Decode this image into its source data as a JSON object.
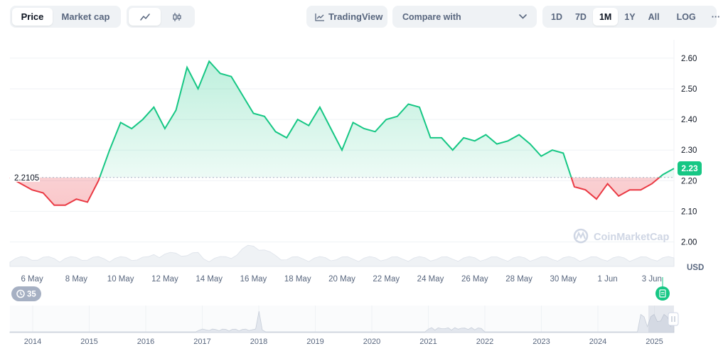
{
  "toolbar": {
    "type_tabs": [
      "Price",
      "Market cap"
    ],
    "active_type": "Price",
    "tradingview_label": "TradingView",
    "compare_label": "Compare with",
    "ranges": [
      "1D",
      "7D",
      "1M",
      "1Y",
      "All"
    ],
    "active_range": "1M",
    "log_label": "LOG",
    "more_label": "···"
  },
  "colors": {
    "up": "#16c784",
    "down": "#ea3943",
    "grid": "#eff2f5",
    "axis_text": "#58667e"
  },
  "icons": [
    "line-chart-icon",
    "candlestick-icon",
    "tradingview-icon",
    "chevron-down-icon",
    "more-icon",
    "history-icon",
    "note-icon",
    "drag-handle-icon"
  ],
  "watermark": "CoinMarketCap",
  "currency_label": "USD",
  "history_badge": "35",
  "chart_data": {
    "type": "area",
    "baseline": 2.2105,
    "baseline_label": "2.2105",
    "current_price_label": "2.23",
    "ylim": [
      1.92,
      2.66
    ],
    "yticks": [
      "2.00",
      "2.10",
      "2.20",
      "2.30",
      "2.40",
      "2.50",
      "2.60"
    ],
    "xlim": [
      "2025-05-05",
      "2025-06-04"
    ],
    "x_tick_labels": [
      "6 May",
      "8 May",
      "10 May",
      "12 May",
      "14 May",
      "16 May",
      "18 May",
      "20 May",
      "22 May",
      "24 May",
      "26 May",
      "28 May",
      "30 May",
      "1 Jun",
      "3 Jun"
    ],
    "series": [
      {
        "x": [
          "2025-05-05",
          "2025-05-05T12:00",
          "2025-05-06",
          "2025-05-06T12:00",
          "2025-05-07",
          "2025-05-07T12:00",
          "2025-05-08",
          "2025-05-08T12:00",
          "2025-05-09",
          "2025-05-09T12:00",
          "2025-05-10",
          "2025-05-10T12:00",
          "2025-05-11",
          "2025-05-11T12:00",
          "2025-05-12",
          "2025-05-12T12:00",
          "2025-05-13",
          "2025-05-13T12:00",
          "2025-05-14",
          "2025-05-14T12:00",
          "2025-05-15",
          "2025-05-15T12:00",
          "2025-05-16",
          "2025-05-16T12:00",
          "2025-05-17",
          "2025-05-17T12:00",
          "2025-05-18",
          "2025-05-18T12:00",
          "2025-05-19",
          "2025-05-19T12:00",
          "2025-05-20",
          "2025-05-20T12:00",
          "2025-05-21",
          "2025-05-21T12:00",
          "2025-05-22",
          "2025-05-22T12:00",
          "2025-05-23",
          "2025-05-23T12:00",
          "2025-05-24",
          "2025-05-24T12:00",
          "2025-05-25",
          "2025-05-25T12:00",
          "2025-05-26",
          "2025-05-26T12:00",
          "2025-05-27",
          "2025-05-27T12:00",
          "2025-05-28",
          "2025-05-28T12:00",
          "2025-05-29",
          "2025-05-29T12:00",
          "2025-05-30",
          "2025-05-30T12:00",
          "2025-05-31",
          "2025-05-31T12:00",
          "2025-06-01",
          "2025-06-01T12:00",
          "2025-06-02",
          "2025-06-02T12:00",
          "2025-06-03",
          "2025-06-03T12:00",
          "2025-06-04"
        ],
        "values": [
          2.21,
          2.19,
          2.17,
          2.16,
          2.12,
          2.12,
          2.14,
          2.13,
          2.2,
          2.3,
          2.39,
          2.37,
          2.4,
          2.44,
          2.37,
          2.43,
          2.57,
          2.5,
          2.59,
          2.55,
          2.54,
          2.48,
          2.42,
          2.41,
          2.36,
          2.34,
          2.4,
          2.38,
          2.44,
          2.37,
          2.3,
          2.39,
          2.37,
          2.36,
          2.4,
          2.41,
          2.45,
          2.44,
          2.34,
          2.34,
          2.3,
          2.34,
          2.33,
          2.35,
          2.32,
          2.33,
          2.35,
          2.32,
          2.28,
          2.3,
          2.29,
          2.18,
          2.17,
          2.14,
          2.19,
          2.15,
          2.17,
          2.17,
          2.19,
          2.22,
          2.24
        ]
      }
    ],
    "navigator_x_labels": [
      "2014",
      "2015",
      "2016",
      "2017",
      "2018",
      "2019",
      "2020",
      "2021",
      "2022",
      "2023",
      "2024",
      "2025"
    ]
  }
}
